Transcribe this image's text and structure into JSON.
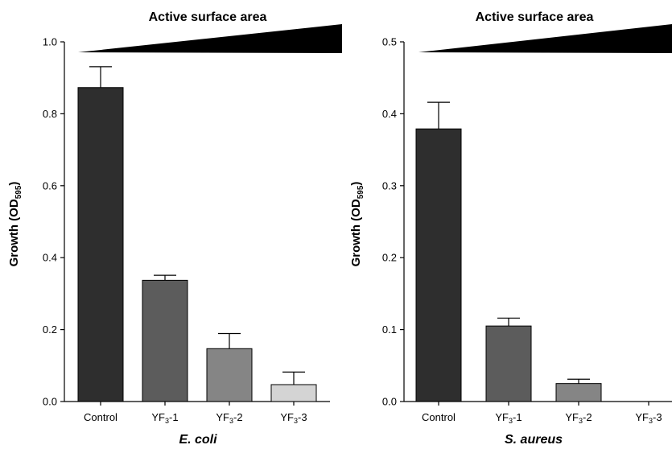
{
  "chart_data": [
    {
      "type": "bar",
      "header": "Active surface area",
      "xlabel": "E. coli",
      "ylabel": {
        "main": "Growth (OD",
        "sub": "595",
        "end": ")"
      },
      "ylim": [
        0,
        1.0
      ],
      "yticks": [
        "0.0",
        "0.2",
        "0.4",
        "0.6",
        "0.8",
        "1.0"
      ],
      "categories": [
        {
          "main": "Control",
          "sub": "",
          "end": ""
        },
        {
          "main": "YF",
          "sub": "3",
          "end": "-1"
        },
        {
          "main": "YF",
          "sub": "3",
          "end": "-2"
        },
        {
          "main": "YF",
          "sub": "3",
          "end": "-3"
        }
      ],
      "values": [
        0.873,
        0.337,
        0.147,
        0.047
      ],
      "errors": [
        0.058,
        0.014,
        0.042,
        0.035
      ],
      "colors": [
        "#2e2e2e",
        "#5c5c5c",
        "#858585",
        "#d4d4d4"
      ],
      "grid": false
    },
    {
      "type": "bar",
      "header": "Active surface area",
      "xlabel": "S. aureus",
      "ylabel": {
        "main": "Growth (OD",
        "sub": "595",
        "end": ")"
      },
      "ylim": [
        0,
        0.5
      ],
      "yticks": [
        "0.0",
        "0.1",
        "0.2",
        "0.3",
        "0.4",
        "0.5"
      ],
      "categories": [
        {
          "main": "Control",
          "sub": "",
          "end": ""
        },
        {
          "main": "YF",
          "sub": "3",
          "end": "-1"
        },
        {
          "main": "YF",
          "sub": "3",
          "end": "-2"
        },
        {
          "main": "YF",
          "sub": "3",
          "end": "-3"
        }
      ],
      "values": [
        0.379,
        0.105,
        0.025,
        0.0
      ],
      "errors": [
        0.037,
        0.011,
        0.006,
        0.0
      ],
      "colors": [
        "#2e2e2e",
        "#5c5c5c",
        "#858585",
        "#d4d4d4"
      ],
      "grid": false
    }
  ]
}
